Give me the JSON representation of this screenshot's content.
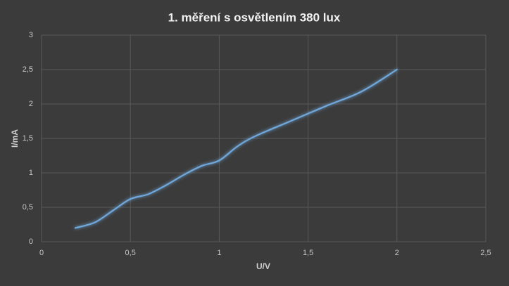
{
  "chart_data": {
    "type": "line",
    "title": "1. měření s osvětlením 380 lux",
    "x_label": "U/V",
    "y_label": "I/mA",
    "series": [
      {
        "name": "I",
        "color": "#6fa8dc",
        "x": [
          0.19,
          0.3,
          0.4,
          0.5,
          0.6,
          0.7,
          0.8,
          0.9,
          1.0,
          1.1,
          1.2,
          1.4,
          1.6,
          1.8,
          2.0
        ],
        "values": [
          0.2,
          0.28,
          0.45,
          0.62,
          0.69,
          0.82,
          0.97,
          1.1,
          1.18,
          1.38,
          1.53,
          1.75,
          1.97,
          2.18,
          2.5
        ]
      }
    ],
    "xlim": [
      0,
      2.5
    ],
    "xticks": [
      0,
      {
        "value": 0.5,
        "label": "0,5"
      },
      1,
      {
        "value": 1.5,
        "label": "1,5"
      },
      2,
      {
        "value": 2.5,
        "label": "2,5"
      }
    ],
    "ylim": [
      0,
      3
    ],
    "yticks": [
      0,
      {
        "value": 0.5,
        "label": "0,5"
      },
      1,
      {
        "value": 1.5,
        "label": "1,5"
      },
      2,
      {
        "value": 2.5,
        "label": "2,5"
      },
      3
    ],
    "grid": true,
    "smooth": true
  }
}
